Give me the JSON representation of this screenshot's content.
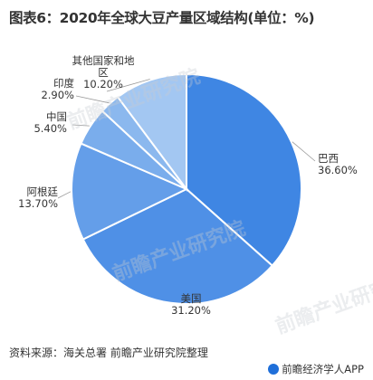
{
  "title": "图表6：2020年全球大豆产量区域结构(单位：%)",
  "chart_data": {
    "type": "pie",
    "variant": "donut",
    "title": "图表6：2020年全球大豆产量区域结构(单位：%)",
    "slices": [
      {
        "name": "巴西",
        "value": 36.6,
        "label": "36.60%",
        "color": "#3f86e3"
      },
      {
        "name": "美国",
        "value": 31.2,
        "label": "31.20%",
        "color": "#4f90e6"
      },
      {
        "name": "阿根廷",
        "value": 13.7,
        "label": "13.70%",
        "color": "#649ee9"
      },
      {
        "name": "中国",
        "value": 5.4,
        "label": "5.40%",
        "color": "#7aadec"
      },
      {
        "name": "印度",
        "value": 2.9,
        "label": "2.90%",
        "color": "#8bb8ee"
      },
      {
        "name": "其他国家和地区",
        "value": 10.2,
        "label": "10.20%",
        "color": "#a3c7f2"
      }
    ],
    "label_lines": {
      "巴西": [
        "巴西"
      ],
      "美国": [
        "美国"
      ],
      "阿根廷": [
        "阿根廷"
      ],
      "中国": [
        "中国"
      ],
      "印度": [
        "印度"
      ],
      "其他国家和地区": [
        "其他国家和地",
        "区"
      ]
    }
  },
  "footer": {
    "source": "资料来源：海关总署 前瞻产业研究院整理",
    "brand": "前瞻经济学人APP"
  },
  "watermark": "前瞻产业研究院"
}
